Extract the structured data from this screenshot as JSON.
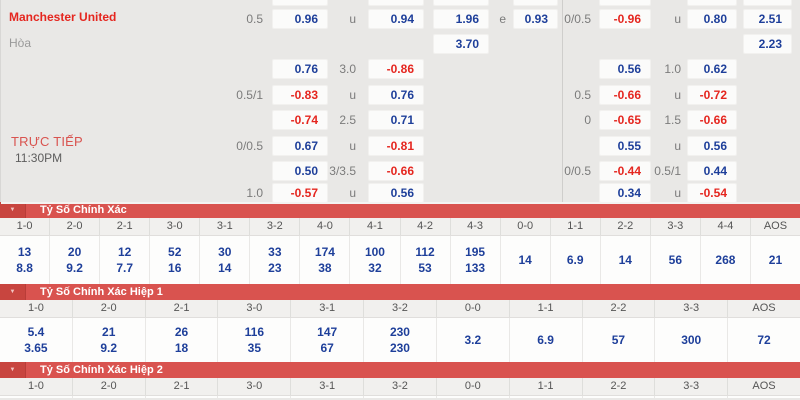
{
  "colors": {
    "panel_bg": "#e9e8e6",
    "odds_blue": "#1e3f9a",
    "odds_red": "#e5261f",
    "team_red": "#e5261f",
    "live_red": "#d9534f",
    "bar_red": "#d9534f",
    "bar_chevron_bg": "#c8453f"
  },
  "match": {
    "home_team": "Manchester United",
    "draw_label": "Hòa",
    "live_label": "TRỰC TIẾP",
    "time": "11:30PM"
  },
  "odds_rows": [
    {
      "cells": [
        {
          "col": "hc1",
          "text": "0.5"
        },
        {
          "col": "box1",
          "text": "0.96",
          "color": "blue"
        },
        {
          "col": "hc2",
          "text": "u"
        },
        {
          "col": "box2",
          "text": "0.94",
          "color": "blue"
        },
        {
          "col": "x12",
          "text": "1.96",
          "color": "blue"
        },
        {
          "col": "hcE",
          "text": "e"
        },
        {
          "col": "boxE",
          "text": "0.93",
          "color": "blue"
        },
        {
          "col": "hc3",
          "text": "0/0.5"
        },
        {
          "col": "box4",
          "text": "-0.96",
          "color": "red"
        },
        {
          "col": "hc4",
          "text": "u"
        },
        {
          "col": "box5",
          "text": "0.80",
          "color": "blue"
        },
        {
          "col": "x2",
          "text": "2.51",
          "color": "blue"
        }
      ]
    },
    {
      "cells": [
        {
          "col": "x12",
          "text": "3.70",
          "color": "blue"
        },
        {
          "col": "x2",
          "text": "2.23",
          "color": "blue"
        }
      ]
    },
    {
      "cells": [
        {
          "col": "box1",
          "text": "0.76",
          "color": "blue"
        },
        {
          "col": "hc2",
          "text": "3.0"
        },
        {
          "col": "box2",
          "text": "-0.86",
          "color": "red"
        },
        {
          "col": "box4",
          "text": "0.56",
          "color": "blue"
        },
        {
          "col": "hc4",
          "text": "1.0"
        },
        {
          "col": "box5",
          "text": "0.62",
          "color": "blue"
        }
      ]
    },
    {
      "cells": [
        {
          "col": "hc1",
          "text": "0.5/1"
        },
        {
          "col": "box1",
          "text": "-0.83",
          "color": "red"
        },
        {
          "col": "hc2",
          "text": "u"
        },
        {
          "col": "box2",
          "text": "0.76",
          "color": "blue"
        },
        {
          "col": "hc3",
          "text": "0.5"
        },
        {
          "col": "box4",
          "text": "-0.66",
          "color": "red"
        },
        {
          "col": "hc4",
          "text": "u"
        },
        {
          "col": "box5",
          "text": "-0.72",
          "color": "red"
        }
      ]
    },
    {
      "cells": [
        {
          "col": "box1",
          "text": "-0.74",
          "color": "red"
        },
        {
          "col": "hc2",
          "text": "2.5"
        },
        {
          "col": "box2",
          "text": "0.71",
          "color": "blue"
        },
        {
          "col": "hc3",
          "text": "0"
        },
        {
          "col": "box4",
          "text": "-0.65",
          "color": "red"
        },
        {
          "col": "hc4",
          "text": "1.5"
        },
        {
          "col": "box5",
          "text": "-0.66",
          "color": "red"
        }
      ]
    },
    {
      "cells": [
        {
          "col": "hc1",
          "text": "0/0.5"
        },
        {
          "col": "box1",
          "text": "0.67",
          "color": "blue"
        },
        {
          "col": "hc2",
          "text": "u"
        },
        {
          "col": "box2",
          "text": "-0.81",
          "color": "red"
        },
        {
          "col": "box4",
          "text": "0.55",
          "color": "blue"
        },
        {
          "col": "hc4",
          "text": "u"
        },
        {
          "col": "box5",
          "text": "0.56",
          "color": "blue"
        }
      ]
    },
    {
      "cells": [
        {
          "col": "box1",
          "text": "0.50",
          "color": "blue"
        },
        {
          "col": "hc2",
          "text": "3/3.5"
        },
        {
          "col": "box2",
          "text": "-0.66",
          "color": "red"
        },
        {
          "col": "hc3",
          "text": "0/0.5"
        },
        {
          "col": "box4",
          "text": "-0.44",
          "color": "red"
        },
        {
          "col": "hc4",
          "text": "0.5/1"
        },
        {
          "col": "box5",
          "text": "0.44",
          "color": "blue"
        }
      ]
    },
    {
      "cells": [
        {
          "col": "hc1",
          "text": "1.0"
        },
        {
          "col": "box1",
          "text": "-0.57",
          "color": "red"
        },
        {
          "col": "hc2",
          "text": "u"
        },
        {
          "col": "box2",
          "text": "0.56",
          "color": "blue"
        },
        {
          "col": "box4",
          "text": "0.34",
          "color": "blue"
        },
        {
          "col": "hc4",
          "text": "u"
        },
        {
          "col": "box5",
          "text": "-0.54",
          "color": "red"
        }
      ]
    }
  ],
  "sections": [
    {
      "title": "Tỷ Số Chính Xác",
      "columns": [
        {
          "score": "1-0",
          "values": [
            "13",
            "8.8"
          ]
        },
        {
          "score": "2-0",
          "values": [
            "20",
            "9.2"
          ]
        },
        {
          "score": "2-1",
          "values": [
            "12",
            "7.7"
          ]
        },
        {
          "score": "3-0",
          "values": [
            "52",
            "16"
          ]
        },
        {
          "score": "3-1",
          "values": [
            "30",
            "14"
          ]
        },
        {
          "score": "3-2",
          "values": [
            "33",
            "23"
          ]
        },
        {
          "score": "4-0",
          "values": [
            "174",
            "38"
          ]
        },
        {
          "score": "4-1",
          "values": [
            "100",
            "32"
          ]
        },
        {
          "score": "4-2",
          "values": [
            "112",
            "53"
          ]
        },
        {
          "score": "4-3",
          "values": [
            "195",
            "133"
          ]
        },
        {
          "score": "0-0",
          "values": [
            "14"
          ]
        },
        {
          "score": "1-1",
          "values": [
            "6.9"
          ]
        },
        {
          "score": "2-2",
          "values": [
            "14"
          ]
        },
        {
          "score": "3-3",
          "values": [
            "56"
          ]
        },
        {
          "score": "4-4",
          "values": [
            "268"
          ]
        },
        {
          "score": "AOS",
          "values": [
            "21"
          ]
        }
      ]
    },
    {
      "title": "Tỷ Số Chính Xác Hiệp 1",
      "columns": [
        {
          "score": "1-0",
          "values": [
            "5.4",
            "3.65"
          ]
        },
        {
          "score": "2-0",
          "values": [
            "21",
            "9.2"
          ]
        },
        {
          "score": "2-1",
          "values": [
            "26",
            "18"
          ]
        },
        {
          "score": "3-0",
          "values": [
            "116",
            "35"
          ]
        },
        {
          "score": "3-1",
          "values": [
            "147",
            "67"
          ]
        },
        {
          "score": "3-2",
          "values": [
            "230",
            "230"
          ]
        },
        {
          "score": "0-0",
          "values": [
            "3.2"
          ]
        },
        {
          "score": "1-1",
          "values": [
            "6.9"
          ]
        },
        {
          "score": "2-2",
          "values": [
            "57"
          ]
        },
        {
          "score": "3-3",
          "values": [
            "300"
          ]
        },
        {
          "score": "AOS",
          "values": [
            "72"
          ]
        }
      ]
    },
    {
      "title": "Tỷ Số Chính Xác Hiệp 2",
      "columns": [
        {
          "score": "1-0",
          "values": []
        },
        {
          "score": "2-0",
          "values": []
        },
        {
          "score": "2-1",
          "values": []
        },
        {
          "score": "3-0",
          "values": []
        },
        {
          "score": "3-1",
          "values": []
        },
        {
          "score": "3-2",
          "values": []
        },
        {
          "score": "0-0",
          "values": []
        },
        {
          "score": "1-1",
          "values": []
        },
        {
          "score": "2-2",
          "values": []
        },
        {
          "score": "3-3",
          "values": []
        },
        {
          "score": "AOS",
          "values": []
        }
      ]
    }
  ]
}
